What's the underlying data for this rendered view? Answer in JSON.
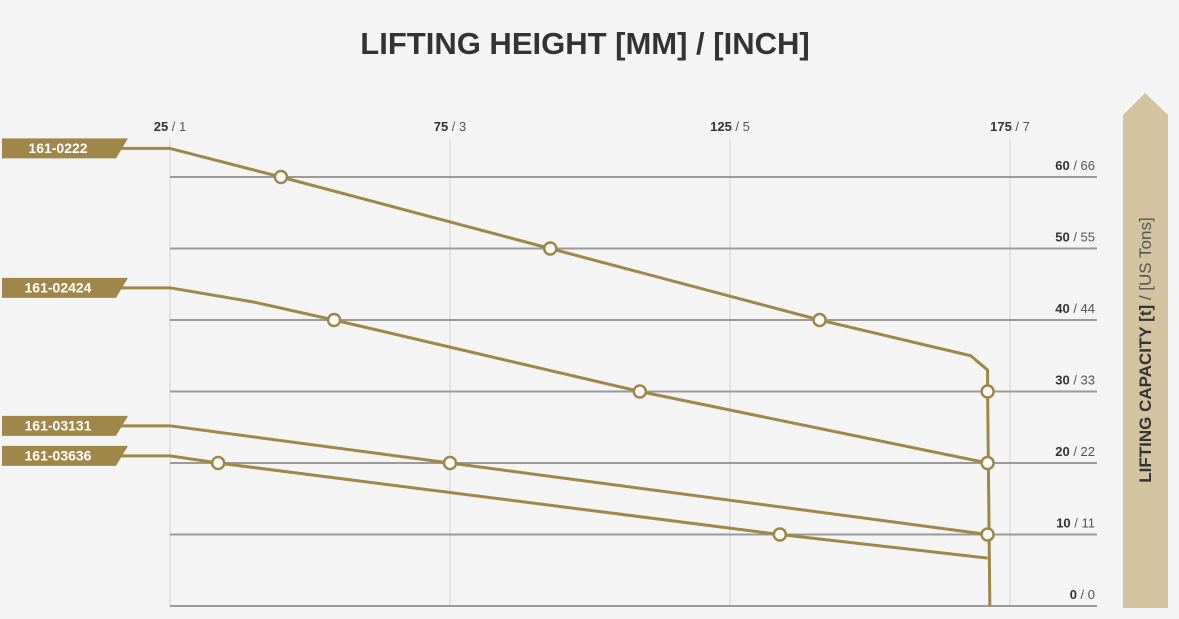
{
  "chart_data": {
    "type": "line",
    "title": "LIFTING HEIGHT [MM] / [INCH]",
    "y_label": "LIFTING CAPACITY [t] / [US Tons]",
    "xlim": [
      25,
      190
    ],
    "ylim": [
      0,
      65
    ],
    "xticks": [
      {
        "value": 25,
        "label": "25 / 1"
      },
      {
        "value": 75,
        "label": "75 / 3"
      },
      {
        "value": 125,
        "label": "125 / 5"
      },
      {
        "value": 175,
        "label": "175 / 7"
      }
    ],
    "yticks": [
      {
        "value": 0,
        "label": "0 / 0"
      },
      {
        "value": 10,
        "label": "10 / 11"
      },
      {
        "value": 20,
        "label": "20 / 22"
      },
      {
        "value": 30,
        "label": "30 / 33"
      },
      {
        "value": 40,
        "label": "40 / 44"
      },
      {
        "value": 50,
        "label": "50 / 55"
      },
      {
        "value": 60,
        "label": "60 / 66"
      }
    ],
    "grid": true,
    "series": [
      {
        "name": "161-0222",
        "color": "#9e8748",
        "x": [
          25,
          44.8,
          92.9,
          141,
          168,
          171,
          171,
          171.4
        ],
        "values": [
          64,
          60,
          50,
          40,
          35,
          33,
          30,
          0
        ],
        "markers": {
          "x": [
            44.8,
            92.9,
            141,
            171
          ],
          "values": [
            60,
            50,
            40,
            30
          ]
        }
      },
      {
        "name": "161-02424",
        "color": "#9e8748",
        "x": [
          25,
          40,
          54.3,
          108.9,
          171
        ],
        "values": [
          44.5,
          42.5,
          40,
          30,
          20
        ],
        "markers": {
          "x": [
            54.3,
            108.9,
            171
          ],
          "values": [
            40,
            30,
            20
          ]
        }
      },
      {
        "name": "161-03131",
        "color": "#9e8748",
        "x": [
          25,
          75,
          171
        ],
        "values": [
          25.2,
          20,
          10
        ],
        "markers": {
          "x": [
            75,
            171
          ],
          "values": [
            20,
            10
          ]
        }
      },
      {
        "name": "161-03636",
        "color": "#9e8748",
        "x": [
          25,
          33.6,
          133.9,
          171
        ],
        "values": [
          21,
          20,
          10,
          6.7
        ],
        "markers": {
          "x": [
            33.6,
            133.9
          ],
          "values": [
            20,
            10
          ]
        }
      }
    ]
  }
}
